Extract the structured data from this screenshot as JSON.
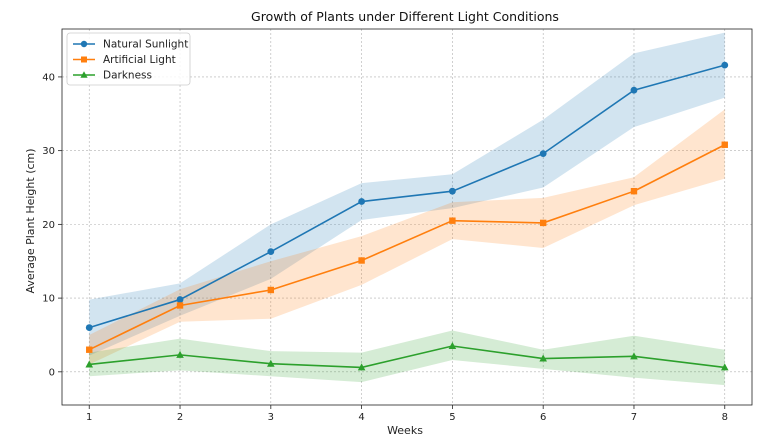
{
  "chart_data": {
    "type": "line",
    "title": "Growth of Plants under Different Light Conditions",
    "xlabel": "Weeks",
    "ylabel": "Average Plant Height (cm)",
    "x": [
      1,
      2,
      3,
      4,
      5,
      6,
      7,
      8
    ],
    "xlim": [
      0.7,
      8.3
    ],
    "ylim": [
      -4.5,
      46.5
    ],
    "xticks": [
      1,
      2,
      3,
      4,
      5,
      6,
      7,
      8
    ],
    "yticks": [
      0,
      10,
      20,
      30,
      40
    ],
    "grid": true,
    "legend_position": "top-left",
    "series": [
      {
        "name": "Natural Sunlight",
        "color": "#1f77b4",
        "marker": "circle",
        "values": [
          6.0,
          9.8,
          16.3,
          23.1,
          24.5,
          29.6,
          38.2,
          41.6
        ],
        "band_lower": [
          2.2,
          7.6,
          12.6,
          20.6,
          22.2,
          25.0,
          33.2,
          37.2
        ],
        "band_upper": [
          9.8,
          12.0,
          20.0,
          25.6,
          26.8,
          34.2,
          43.2,
          46.0
        ]
      },
      {
        "name": "Artificial Light",
        "color": "#ff7f0e",
        "marker": "square",
        "values": [
          3.0,
          9.0,
          11.1,
          15.1,
          20.5,
          20.2,
          24.5,
          30.8
        ],
        "band_lower": [
          1.0,
          6.8,
          7.2,
          11.8,
          18.0,
          16.8,
          22.6,
          26.2
        ],
        "band_upper": [
          5.0,
          11.2,
          15.0,
          18.4,
          23.0,
          23.6,
          26.4,
          35.6
        ]
      },
      {
        "name": "Darkness",
        "color": "#2ca02c",
        "marker": "triangle",
        "values": [
          1.0,
          2.3,
          1.1,
          0.6,
          3.5,
          1.8,
          2.1,
          0.6
        ],
        "band_lower": [
          -0.6,
          0.2,
          -0.6,
          -1.4,
          1.6,
          0.4,
          -0.8,
          -1.8
        ],
        "band_upper": [
          2.6,
          4.5,
          2.8,
          2.6,
          5.6,
          3.0,
          4.9,
          3.0
        ]
      }
    ]
  }
}
